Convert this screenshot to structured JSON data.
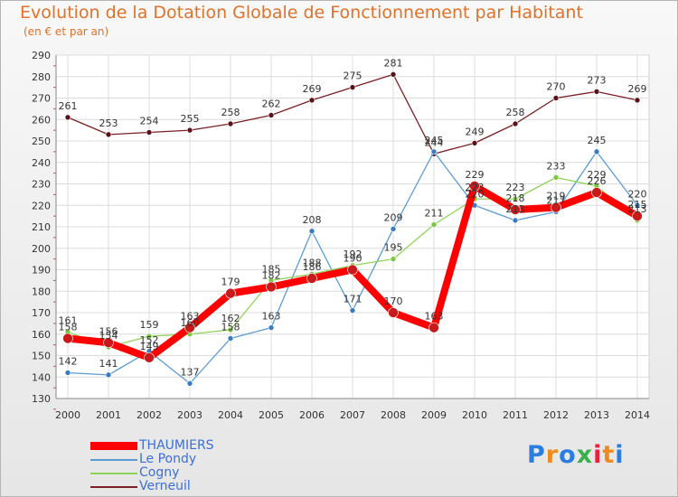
{
  "header": {
    "title": "Evolution de la Dotation Globale de Fonctionnement par Habitant",
    "subtitle": "(en € et par an)"
  },
  "logo": {
    "text": "Proxiti",
    "colors": [
      "#2a7de1",
      "#f08a1c",
      "#2a7de1",
      "#3cb04a",
      "#e8243c",
      "#f08a1c",
      "#2a7de1"
    ]
  },
  "chart_data": {
    "type": "line",
    "title": "Evolution de la Dotation Globale de Fonctionnement par Habitant",
    "subtitle": "(en € et par an)",
    "xlabel": "",
    "ylabel": "",
    "x": [
      "2000",
      "2001",
      "2002",
      "2003",
      "2004",
      "2005",
      "2006",
      "2007",
      "2008",
      "2009",
      "2010",
      "2011",
      "2012",
      "2013",
      "2014"
    ],
    "ylim": [
      130,
      290
    ],
    "yticks": [
      130,
      140,
      150,
      160,
      170,
      180,
      190,
      200,
      210,
      220,
      230,
      240,
      250,
      260,
      270,
      280,
      290
    ],
    "grid": true,
    "legend_position": "bottom-left",
    "series": [
      {
        "name": "Verneuil",
        "color": "#7a1f24",
        "values": [
          261,
          253,
          254,
          255,
          258,
          262,
          269,
          275,
          281,
          244,
          249,
          258,
          270,
          273,
          269
        ]
      },
      {
        "name": "Le Pondy",
        "color": "#5a9bd4",
        "values": [
          142,
          141,
          152,
          137,
          158,
          163,
          208,
          171,
          209,
          245,
          220,
          213,
          217,
          245,
          220
        ]
      },
      {
        "name": "Cogny",
        "color": "#8fd45a",
        "values": [
          161,
          154,
          159,
          160,
          162,
          185,
          188,
          192,
          195,
          211,
          223,
          223,
          233,
          229,
          213
        ]
      },
      {
        "name": "THAUMIERS",
        "color": "#ff0000",
        "values": [
          158,
          156,
          149,
          163,
          179,
          182,
          186,
          190,
          170,
          163,
          229,
          218,
          219,
          226,
          215
        ]
      }
    ]
  }
}
